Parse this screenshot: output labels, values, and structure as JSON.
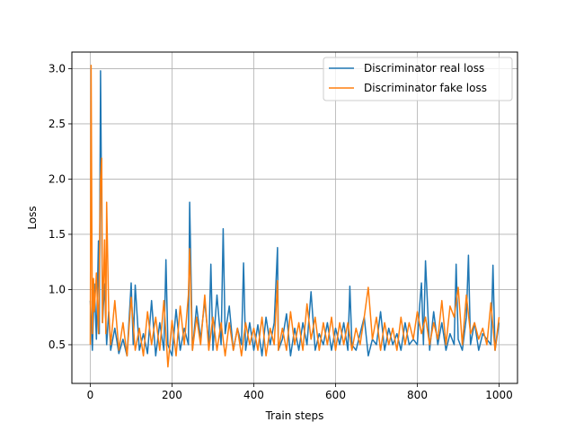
{
  "chart_data": {
    "type": "line",
    "title": "",
    "xlabel": "Train steps",
    "ylabel": "Loss",
    "xlim": [
      -45,
      1045
    ],
    "ylim": [
      0.15,
      3.15
    ],
    "xticks": [
      0,
      200,
      400,
      600,
      800,
      1000
    ],
    "xtick_labels": [
      "0",
      "200",
      "400",
      "600",
      "800",
      "1000"
    ],
    "yticks": [
      0.5,
      1.0,
      1.5,
      2.0,
      2.5,
      3.0
    ],
    "ytick_labels": [
      "0.5",
      "1.0",
      "1.5",
      "2.0",
      "2.5",
      "3.0"
    ],
    "grid": true,
    "legend_position": "top-right",
    "series": [
      {
        "name": "Discriminator real loss",
        "color": "#1f77b4",
        "x": [
          0,
          5,
          10,
          15,
          20,
          22,
          25,
          30,
          35,
          40,
          45,
          50,
          60,
          70,
          80,
          90,
          100,
          105,
          110,
          120,
          130,
          140,
          150,
          160,
          170,
          180,
          185,
          190,
          200,
          210,
          220,
          230,
          240,
          243,
          250,
          260,
          270,
          280,
          290,
          295,
          300,
          310,
          320,
          325,
          330,
          340,
          350,
          360,
          370,
          375,
          380,
          390,
          400,
          410,
          420,
          430,
          440,
          450,
          458,
          460,
          470,
          480,
          490,
          500,
          510,
          520,
          530,
          540,
          550,
          560,
          570,
          580,
          590,
          600,
          610,
          620,
          630,
          635,
          640,
          650,
          660,
          670,
          680,
          690,
          700,
          710,
          720,
          730,
          740,
          750,
          760,
          770,
          780,
          790,
          800,
          805,
          810,
          815,
          820,
          830,
          840,
          850,
          860,
          870,
          880,
          890,
          895,
          900,
          910,
          920,
          925,
          930,
          940,
          950,
          960,
          970,
          980,
          985,
          990,
          1000
        ],
        "y": [
          0.9,
          0.45,
          1.05,
          0.55,
          1.44,
          0.6,
          2.98,
          0.7,
          1.05,
          0.5,
          0.8,
          0.45,
          0.65,
          0.42,
          0.55,
          0.4,
          1.06,
          0.5,
          1.04,
          0.45,
          0.6,
          0.42,
          0.9,
          0.4,
          0.7,
          0.45,
          1.27,
          0.5,
          0.4,
          0.82,
          0.45,
          0.65,
          0.5,
          1.79,
          0.45,
          0.85,
          0.55,
          0.9,
          0.5,
          1.23,
          0.45,
          0.95,
          0.5,
          1.55,
          0.6,
          0.85,
          0.45,
          0.65,
          0.5,
          1.24,
          0.45,
          0.7,
          0.45,
          0.68,
          0.4,
          0.75,
          0.5,
          0.7,
          1.38,
          0.45,
          0.55,
          0.78,
          0.4,
          0.65,
          0.45,
          0.7,
          0.5,
          0.98,
          0.45,
          0.6,
          0.5,
          0.7,
          0.45,
          0.65,
          0.5,
          0.7,
          0.45,
          1.03,
          0.5,
          0.45,
          0.6,
          0.75,
          0.4,
          0.55,
          0.5,
          0.8,
          0.45,
          0.65,
          0.5,
          0.6,
          0.45,
          0.7,
          0.5,
          0.55,
          0.5,
          0.82,
          1.06,
          0.5,
          1.26,
          0.45,
          0.8,
          0.5,
          0.7,
          0.45,
          0.6,
          0.5,
          1.23,
          0.55,
          0.45,
          0.75,
          1.31,
          0.5,
          0.7,
          0.45,
          0.6,
          0.55,
          0.5,
          1.22,
          0.45,
          0.7
        ]
      },
      {
        "name": "Discriminator fake loss",
        "color": "#ff7f0e",
        "x": [
          0,
          2,
          5,
          8,
          10,
          15,
          20,
          25,
          28,
          30,
          35,
          38,
          40,
          45,
          50,
          60,
          70,
          80,
          90,
          100,
          110,
          120,
          130,
          140,
          150,
          160,
          170,
          180,
          190,
          200,
          210,
          220,
          230,
          240,
          243,
          250,
          260,
          270,
          280,
          290,
          300,
          310,
          320,
          330,
          340,
          350,
          360,
          370,
          380,
          390,
          400,
          410,
          420,
          430,
          440,
          450,
          458,
          460,
          470,
          480,
          490,
          500,
          510,
          520,
          530,
          540,
          550,
          560,
          570,
          580,
          590,
          600,
          610,
          620,
          630,
          640,
          650,
          660,
          670,
          680,
          690,
          700,
          710,
          720,
          730,
          740,
          750,
          760,
          770,
          780,
          790,
          800,
          810,
          820,
          830,
          840,
          850,
          860,
          870,
          880,
          890,
          900,
          910,
          920,
          930,
          940,
          950,
          960,
          970,
          980,
          990,
          1000
        ],
        "y": [
          0.5,
          3.03,
          0.6,
          1.1,
          0.8,
          1.15,
          0.6,
          2.0,
          2.19,
          0.7,
          1.45,
          0.6,
          1.79,
          0.8,
          0.5,
          0.9,
          0.45,
          0.7,
          0.4,
          0.93,
          0.45,
          0.65,
          0.4,
          0.8,
          0.5,
          0.75,
          0.45,
          0.9,
          0.3,
          0.72,
          0.4,
          0.85,
          0.5,
          0.95,
          1.37,
          0.45,
          0.75,
          0.5,
          0.95,
          0.45,
          0.75,
          0.45,
          0.7,
          0.4,
          0.7,
          0.45,
          0.65,
          0.4,
          0.7,
          0.5,
          0.65,
          0.45,
          0.75,
          0.4,
          0.65,
          0.5,
          1.08,
          0.45,
          0.65,
          0.45,
          0.8,
          0.5,
          0.7,
          0.45,
          0.87,
          0.55,
          0.75,
          0.45,
          0.7,
          0.5,
          0.75,
          0.45,
          0.7,
          0.5,
          0.7,
          0.45,
          0.65,
          0.5,
          0.75,
          1.02,
          0.55,
          0.75,
          0.45,
          0.7,
          0.5,
          0.65,
          0.45,
          0.75,
          0.5,
          0.7,
          0.55,
          0.8,
          0.6,
          0.75,
          0.5,
          0.7,
          0.55,
          0.9,
          0.5,
          0.85,
          0.75,
          1.02,
          0.5,
          0.95,
          0.6,
          0.7,
          0.55,
          0.65,
          0.5,
          0.88,
          0.45,
          0.75
        ]
      }
    ]
  }
}
